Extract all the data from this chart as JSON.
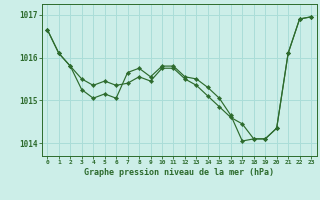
{
  "xlabel": "Graphe pression niveau de la mer (hPa)",
  "bg_color": "#cceee8",
  "grid_color": "#aaddd8",
  "line_color": "#2d6b2d",
  "marker_color": "#2d6b2d",
  "ylim": [
    1013.7,
    1017.25
  ],
  "xlim": [
    -0.5,
    23.5
  ],
  "yticks": [
    1014,
    1015,
    1016,
    1017
  ],
  "xticks": [
    0,
    1,
    2,
    3,
    4,
    5,
    6,
    7,
    8,
    9,
    10,
    11,
    12,
    13,
    14,
    15,
    16,
    17,
    18,
    19,
    20,
    21,
    22,
    23
  ],
  "series1_y": [
    1016.65,
    1016.1,
    1015.8,
    1015.25,
    1015.05,
    1015.15,
    1015.05,
    1015.65,
    1015.75,
    1015.55,
    1015.8,
    1015.8,
    1015.55,
    1015.5,
    1015.3,
    1015.05,
    1014.65,
    1014.05,
    1014.1,
    1014.1,
    1014.35,
    1016.1,
    1016.9,
    1016.95
  ],
  "series2_y": [
    1016.65,
    1016.1,
    1015.8,
    1015.5,
    1015.35,
    1015.45,
    1015.35,
    1015.4,
    1015.55,
    1015.45,
    1015.75,
    1015.75,
    1015.5,
    1015.35,
    1015.1,
    1014.85,
    1014.6,
    1014.45,
    1014.1,
    1014.1,
    1014.35,
    1016.1,
    1016.9,
    1016.95
  ]
}
